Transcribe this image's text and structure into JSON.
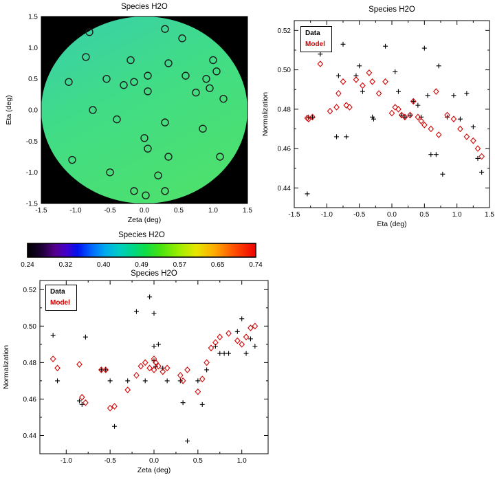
{
  "page": {
    "background": "#ffffff"
  },
  "colors": {
    "axis": "#000000",
    "data_marker": "#000000",
    "model_marker": "#d40000",
    "map_background": "#000000",
    "circle_marker": "#1c1c1c"
  },
  "legend": {
    "data_label": "Data",
    "model_label": "Model"
  },
  "chart_data": [
    {
      "id": "skymap",
      "type": "scatter",
      "title": "Species H2O",
      "xlabel": "Zeta (deg)",
      "ylabel": "Eta (deg)",
      "xlim": [
        -1.5,
        1.5
      ],
      "ylim": [
        -1.5,
        1.5
      ],
      "xticks": [
        -1.5,
        -1.0,
        -0.5,
        0.0,
        0.5,
        1.0,
        1.5
      ],
      "xtick_labels": [
        "-1.5",
        "-1.0",
        "-0.5",
        "0.0",
        "0.5",
        "1.0",
        "1.5"
      ],
      "yticks": [
        -1.5,
        -1.0,
        -0.5,
        0.0,
        0.5,
        1.0,
        1.5
      ],
      "ytick_labels": [
        "-1.5",
        "-1.0",
        "-0.5",
        "0.0",
        "0.5",
        "1.0",
        "1.5"
      ],
      "background": "#000000",
      "disk": {
        "radius": 1.5,
        "gradient": [
          "#38cfae",
          "#41dc86",
          "#4ce06f"
        ]
      },
      "points": [
        [
          -0.8,
          1.25
        ],
        [
          0.3,
          1.3
        ],
        [
          0.55,
          1.15
        ],
        [
          -0.85,
          0.85
        ],
        [
          -0.2,
          0.8
        ],
        [
          0.35,
          0.75
        ],
        [
          1.0,
          0.8
        ],
        [
          -1.1,
          0.45
        ],
        [
          -0.55,
          0.5
        ],
        [
          -0.3,
          0.4
        ],
        [
          -0.15,
          0.45
        ],
        [
          0.05,
          0.55
        ],
        [
          0.6,
          0.55
        ],
        [
          0.9,
          0.5
        ],
        [
          1.05,
          0.62
        ],
        [
          0.95,
          0.35
        ],
        [
          0.05,
          0.3
        ],
        [
          0.75,
          0.28
        ],
        [
          -0.75,
          0.0
        ],
        [
          1.15,
          0.18
        ],
        [
          -0.4,
          -0.15
        ],
        [
          0.3,
          -0.2
        ],
        [
          0.85,
          -0.3
        ],
        [
          0.0,
          -0.45
        ],
        [
          0.05,
          -0.62
        ],
        [
          -1.05,
          -0.8
        ],
        [
          0.35,
          -0.75
        ],
        [
          1.1,
          -0.75
        ],
        [
          -0.5,
          -1.0
        ],
        [
          0.2,
          -1.05
        ],
        [
          -0.15,
          -1.3
        ],
        [
          0.02,
          -1.37
        ],
        [
          0.3,
          -1.3
        ]
      ]
    },
    {
      "id": "eta-scatter",
      "type": "scatter",
      "title": "Species H2O",
      "xlabel": "Eta (deg)",
      "ylabel": "Normalization",
      "xlim": [
        -1.5,
        1.5
      ],
      "ylim": [
        0.43,
        0.525
      ],
      "xticks": [
        -1.5,
        -1.0,
        -0.5,
        0.0,
        0.5,
        1.0,
        1.5
      ],
      "xtick_labels": [
        "-1.5",
        "-1.0",
        "-0.5",
        "0.0",
        "0.5",
        "1.0",
        "1.5"
      ],
      "yticks": [
        0.44,
        0.46,
        0.48,
        0.5,
        0.52
      ],
      "ytick_labels": [
        "0.44",
        "0.46",
        "0.48",
        "0.50",
        "0.52"
      ],
      "series": [
        {
          "name": "Data",
          "marker": "plus",
          "color": "#000000",
          "points": [
            [
              -1.3,
              0.437
            ],
            [
              -1.28,
              0.476
            ],
            [
              -1.22,
              0.476
            ],
            [
              -1.1,
              0.508
            ],
            [
              -0.85,
              0.466
            ],
            [
              -0.82,
              0.497
            ],
            [
              -0.75,
              0.513
            ],
            [
              -0.7,
              0.466
            ],
            [
              -0.55,
              0.497
            ],
            [
              -0.5,
              0.502
            ],
            [
              -0.45,
              0.489
            ],
            [
              -0.3,
              0.476
            ],
            [
              -0.28,
              0.475
            ],
            [
              -0.1,
              0.512
            ],
            [
              0.05,
              0.499
            ],
            [
              0.1,
              0.489
            ],
            [
              0.15,
              0.477
            ],
            [
              0.2,
              0.476
            ],
            [
              0.28,
              0.477
            ],
            [
              0.33,
              0.484
            ],
            [
              0.4,
              0.482
            ],
            [
              0.45,
              0.476
            ],
            [
              0.5,
              0.511
            ],
            [
              0.55,
              0.487
            ],
            [
              0.6,
              0.457
            ],
            [
              0.68,
              0.457
            ],
            [
              0.72,
              0.502
            ],
            [
              0.78,
              0.447
            ],
            [
              0.85,
              0.476
            ],
            [
              0.95,
              0.487
            ],
            [
              1.05,
              0.475
            ],
            [
              1.15,
              0.488
            ],
            [
              1.25,
              0.471
            ],
            [
              1.32,
              0.455
            ],
            [
              1.38,
              0.448
            ]
          ]
        },
        {
          "name": "Model",
          "marker": "diamond",
          "color": "#d40000",
          "points": [
            [
              -1.3,
              0.4755
            ],
            [
              -1.28,
              0.475
            ],
            [
              -1.22,
              0.476
            ],
            [
              -1.1,
              0.503
            ],
            [
              -0.95,
              0.479
            ],
            [
              -0.85,
              0.481
            ],
            [
              -0.82,
              0.488
            ],
            [
              -0.75,
              0.494
            ],
            [
              -0.7,
              0.482
            ],
            [
              -0.65,
              0.481
            ],
            [
              -0.55,
              0.495
            ],
            [
              -0.45,
              0.492
            ],
            [
              -0.35,
              0.4985
            ],
            [
              -0.3,
              0.494
            ],
            [
              -0.2,
              0.488
            ],
            [
              -0.1,
              0.494
            ],
            [
              0.0,
              0.478
            ],
            [
              0.05,
              0.481
            ],
            [
              0.1,
              0.48
            ],
            [
              0.15,
              0.477
            ],
            [
              0.2,
              0.476
            ],
            [
              0.28,
              0.477
            ],
            [
              0.33,
              0.484
            ],
            [
              0.4,
              0.476
            ],
            [
              0.45,
              0.474
            ],
            [
              0.5,
              0.472
            ],
            [
              0.6,
              0.47
            ],
            [
              0.68,
              0.489
            ],
            [
              0.72,
              0.467
            ],
            [
              0.85,
              0.477
            ],
            [
              0.95,
              0.475
            ],
            [
              1.05,
              0.47
            ],
            [
              1.15,
              0.466
            ],
            [
              1.25,
              0.464
            ],
            [
              1.32,
              0.46
            ],
            [
              1.38,
              0.456
            ]
          ]
        }
      ]
    },
    {
      "id": "colorbar",
      "type": "heatmap",
      "title": "Species H2O",
      "tick_labels": [
        "0.24",
        "0.32",
        "0.40",
        "0.49",
        "0.57",
        "0.65",
        "0.74"
      ],
      "gradient": [
        [
          0.0,
          "#000000"
        ],
        [
          0.06,
          "#1a0033"
        ],
        [
          0.12,
          "#55008c"
        ],
        [
          0.17,
          "#4400cc"
        ],
        [
          0.22,
          "#0011ee"
        ],
        [
          0.28,
          "#0066ff"
        ],
        [
          0.34,
          "#00aaee"
        ],
        [
          0.4,
          "#00ccc4"
        ],
        [
          0.46,
          "#00d688"
        ],
        [
          0.52,
          "#11dd44"
        ],
        [
          0.58,
          "#44e211"
        ],
        [
          0.66,
          "#99ee00"
        ],
        [
          0.74,
          "#e6e600"
        ],
        [
          0.82,
          "#ffaa00"
        ],
        [
          0.9,
          "#ff5500"
        ],
        [
          1.0,
          "#ee0000"
        ]
      ]
    },
    {
      "id": "zeta-scatter",
      "type": "scatter",
      "title": "Species H2O",
      "xlabel": "Zeta (deg)",
      "ylabel": "Normalization",
      "xlim": [
        -1.3,
        1.3
      ],
      "ylim": [
        0.43,
        0.525
      ],
      "xticks": [
        -1.0,
        -0.5,
        0.0,
        0.5,
        1.0
      ],
      "xtick_labels": [
        "-1.0",
        "-0.5",
        "0.0",
        "0.5",
        "1.0"
      ],
      "yticks": [
        0.44,
        0.46,
        0.48,
        0.5,
        0.52
      ],
      "ytick_labels": [
        "0.44",
        "0.46",
        "0.48",
        "0.50",
        "0.52"
      ],
      "series": [
        {
          "name": "Data",
          "marker": "plus",
          "color": "#000000",
          "points": [
            [
              -1.15,
              0.495
            ],
            [
              -1.1,
              0.47
            ],
            [
              -0.85,
              0.459
            ],
            [
              -0.82,
              0.457
            ],
            [
              -0.78,
              0.494
            ],
            [
              -0.6,
              0.476
            ],
            [
              -0.55,
              0.476
            ],
            [
              -0.5,
              0.47
            ],
            [
              -0.45,
              0.445
            ],
            [
              -0.3,
              0.47
            ],
            [
              -0.2,
              0.508
            ],
            [
              -0.1,
              0.47
            ],
            [
              -0.05,
              0.516
            ],
            [
              0.0,
              0.507
            ],
            [
              0.0,
              0.489
            ],
            [
              0.0,
              0.481
            ],
            [
              0.02,
              0.478
            ],
            [
              0.05,
              0.49
            ],
            [
              0.1,
              0.477
            ],
            [
              0.15,
              0.47
            ],
            [
              0.3,
              0.47
            ],
            [
              0.33,
              0.458
            ],
            [
              0.38,
              0.437
            ],
            [
              0.5,
              0.47
            ],
            [
              0.55,
              0.457
            ],
            [
              0.6,
              0.476
            ],
            [
              0.7,
              0.489
            ],
            [
              0.75,
              0.485
            ],
            [
              0.8,
              0.485
            ],
            [
              0.85,
              0.485
            ],
            [
              0.95,
              0.497
            ],
            [
              1.0,
              0.504
            ],
            [
              1.05,
              0.485
            ],
            [
              1.1,
              0.493
            ],
            [
              1.15,
              0.489
            ]
          ]
        },
        {
          "name": "Model",
          "marker": "diamond",
          "color": "#d40000",
          "points": [
            [
              -1.15,
              0.482
            ],
            [
              -1.1,
              0.477
            ],
            [
              -0.85,
              0.479
            ],
            [
              -0.82,
              0.461
            ],
            [
              -0.78,
              0.458
            ],
            [
              -0.6,
              0.476
            ],
            [
              -0.55,
              0.476
            ],
            [
              -0.5,
              0.455
            ],
            [
              -0.45,
              0.456
            ],
            [
              -0.3,
              0.465
            ],
            [
              -0.2,
              0.473
            ],
            [
              -0.15,
              0.478
            ],
            [
              -0.1,
              0.48
            ],
            [
              -0.05,
              0.477
            ],
            [
              0.0,
              0.482
            ],
            [
              0.0,
              0.476
            ],
            [
              0.02,
              0.48
            ],
            [
              0.05,
              0.478
            ],
            [
              0.1,
              0.475
            ],
            [
              0.15,
              0.477
            ],
            [
              0.3,
              0.473
            ],
            [
              0.33,
              0.47
            ],
            [
              0.38,
              0.476
            ],
            [
              0.5,
              0.464
            ],
            [
              0.55,
              0.471
            ],
            [
              0.6,
              0.48
            ],
            [
              0.65,
              0.488
            ],
            [
              0.7,
              0.491
            ],
            [
              0.75,
              0.494
            ],
            [
              0.85,
              0.496
            ],
            [
              0.95,
              0.492
            ],
            [
              1.0,
              0.49
            ],
            [
              1.05,
              0.494
            ],
            [
              1.1,
              0.499
            ],
            [
              1.15,
              0.5
            ]
          ]
        }
      ]
    }
  ]
}
